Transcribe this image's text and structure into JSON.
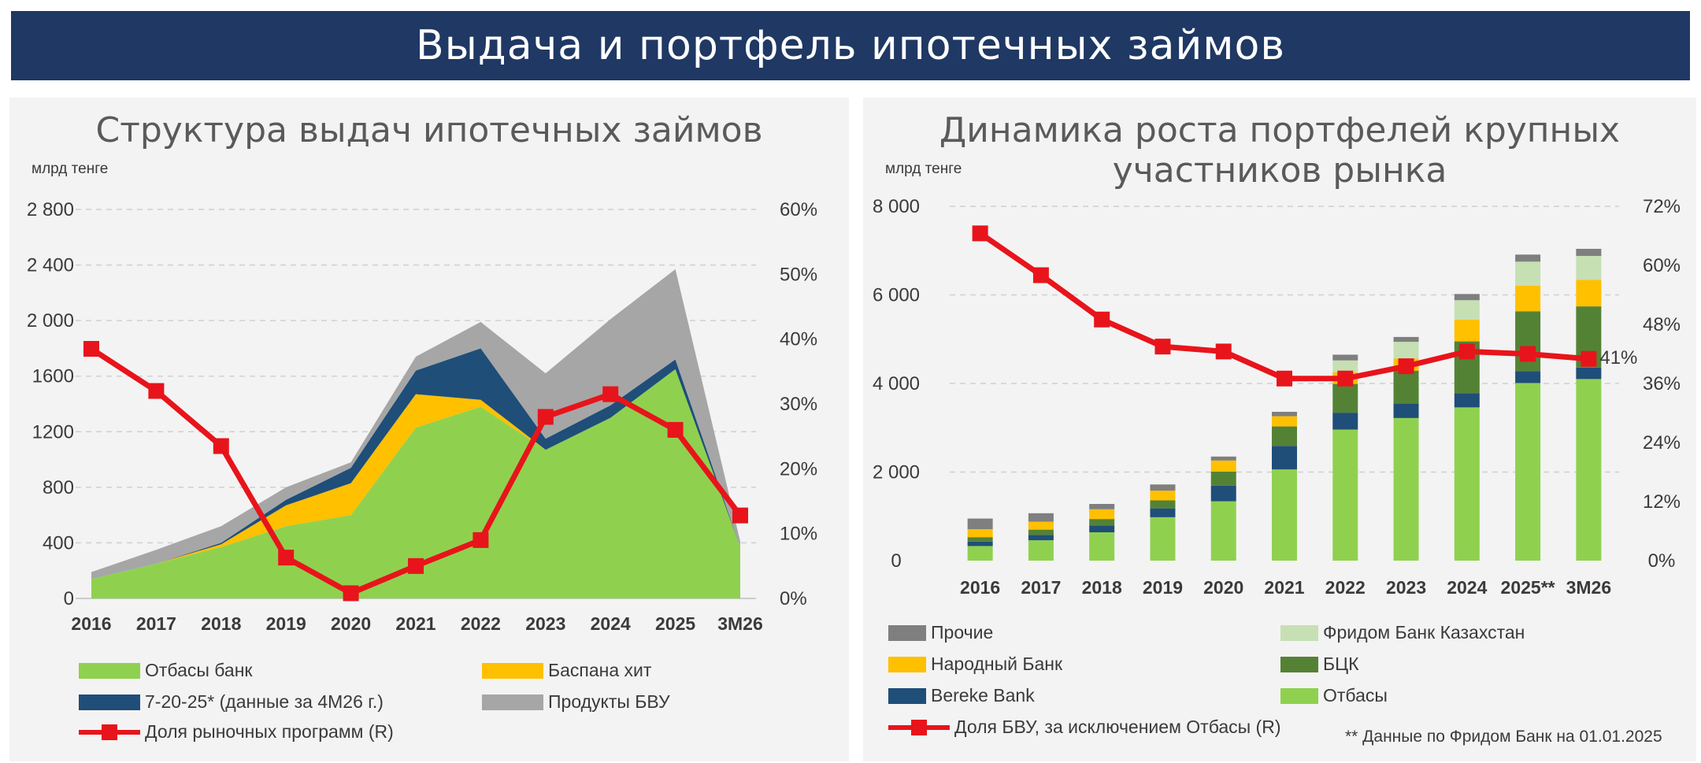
{
  "header": {
    "title": "Выдача и портфель ипотечных займов"
  },
  "left": {
    "title": "Структура выдач ипотечных займов",
    "unit": "млрд тенге",
    "y_ticks": [
      "0",
      "400",
      "800",
      "1200",
      "1600",
      "2 000",
      "2 400",
      "2 800"
    ],
    "y2_ticks": [
      "0%",
      "10%",
      "20%",
      "30%",
      "40%",
      "50%",
      "60%"
    ],
    "legend": {
      "otbasy": "Отбасы банк",
      "baspana": "Баспана хит",
      "program72025": "7-20-25* (данные за 4М26 г.)",
      "bvu_products": "Продукты БВУ",
      "share_line": "Доля рыночных программ (R)"
    }
  },
  "right": {
    "title": "Динамика роста портфелей крупных участников рынка",
    "unit": "млрд тенге",
    "y_ticks": [
      "0",
      "2 000",
      "4 000",
      "6 000",
      "8 000"
    ],
    "y2_ticks": [
      "0%",
      "12%",
      "24%",
      "36%",
      "48%",
      "60%",
      "72%"
    ],
    "last_label": "41%",
    "legend": {
      "other": "Прочие",
      "fridom": "Фридом Банк Казахстан",
      "narodny": "Народный Банк",
      "bck": "БЦК",
      "bereke": "Bereke Bank",
      "otbasy": "Отбасы",
      "share_line": "Доля  БВУ, за исключением Отбасы (R)"
    },
    "note": "** Данные по Фридом Банк на 01.01.2025"
  },
  "colors": {
    "otbasy": "#8fd14f",
    "baspana": "#ffc000",
    "program": "#1f4e79",
    "bvu": "#a6a6a6",
    "line": "#e8141b",
    "bck": "#548235",
    "fridom": "#c6e0b4",
    "other": "#7f7f7f",
    "grid": "#d0d0d0"
  },
  "chart_data": [
    {
      "type": "area",
      "title": "Структура выдач ипотечных займов",
      "ylabel": "млрд тенге",
      "ylim": [
        0,
        2800
      ],
      "y2lim": [
        0,
        0.6
      ],
      "stacked": true,
      "grid": true,
      "legend_position": "bottom",
      "categories": [
        "2016",
        "2017",
        "2018",
        "2019",
        "2020",
        "2021",
        "2022",
        "2023",
        "2024",
        "2025",
        "3M26"
      ],
      "series": [
        {
          "name": "Отбасы банк",
          "color": "#8fd14f",
          "values": [
            140,
            250,
            370,
            520,
            600,
            1230,
            1380,
            1070,
            1300,
            1650,
            370
          ]
        },
        {
          "name": "Баспана хит",
          "color": "#ffc000",
          "values": [
            0,
            0,
            20,
            150,
            230,
            240,
            50,
            0,
            0,
            0,
            0
          ]
        },
        {
          "name": "7-20-25* (данные за 4М26 г.)",
          "color": "#1f4e79",
          "values": [
            0,
            0,
            10,
            40,
            110,
            170,
            370,
            80,
            90,
            70,
            0
          ]
        },
        {
          "name": "Продукты БВУ",
          "color": "#a6a6a6",
          "values": [
            50,
            100,
            120,
            90,
            40,
            100,
            190,
            470,
            620,
            650,
            40
          ]
        }
      ],
      "line_series": {
        "name": "Доля рыночных программ (R)",
        "color": "#e8141b",
        "axis": "right",
        "values": [
          0.385,
          0.32,
          0.235,
          0.063,
          0.008,
          0.05,
          0.09,
          0.28,
          0.315,
          0.26,
          0.128
        ]
      }
    },
    {
      "type": "bar",
      "title": "Динамика роста портфелей крупных участников рынка",
      "ylabel": "млрд тенге",
      "ylim": [
        0,
        8000
      ],
      "y2lim": [
        0,
        0.72
      ],
      "stacked": true,
      "grid": true,
      "legend_position": "bottom",
      "categories": [
        "2016",
        "2017",
        "2018",
        "2019",
        "2020",
        "2021",
        "2022",
        "2023",
        "2024",
        "2025**",
        "3M26"
      ],
      "series": [
        {
          "name": "Отбасы",
          "color": "#8fd14f",
          "values": [
            330,
            460,
            640,
            980,
            1340,
            2060,
            2960,
            3220,
            3460,
            4010,
            4100
          ]
        },
        {
          "name": "Bereke Bank",
          "color": "#1f4e79",
          "values": [
            100,
            120,
            150,
            200,
            350,
            530,
            380,
            330,
            320,
            270,
            260
          ]
        },
        {
          "name": "БЦК",
          "color": "#548235",
          "values": [
            100,
            120,
            150,
            180,
            320,
            440,
            650,
            740,
            1170,
            1350,
            1380
          ]
        },
        {
          "name": "Народный Банк",
          "color": "#ffc000",
          "values": [
            180,
            180,
            220,
            220,
            250,
            230,
            260,
            270,
            490,
            580,
            600
          ]
        },
        {
          "name": "Фридом Банк Казахстан",
          "color": "#c6e0b4",
          "values": [
            0,
            0,
            0,
            0,
            0,
            0,
            270,
            380,
            440,
            540,
            540
          ]
        },
        {
          "name": "Прочие",
          "color": "#7f7f7f",
          "values": [
            240,
            190,
            120,
            140,
            90,
            100,
            130,
            110,
            140,
            160,
            160
          ]
        }
      ],
      "line_series": {
        "name": "Доля  БВУ, за исключением Отбасы (R)",
        "color": "#e8141b",
        "axis": "right",
        "values": [
          0.665,
          0.58,
          0.49,
          0.435,
          0.425,
          0.37,
          0.37,
          0.395,
          0.425,
          0.42,
          0.41
        ]
      }
    }
  ]
}
